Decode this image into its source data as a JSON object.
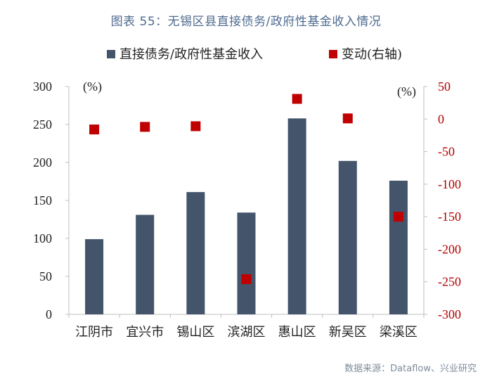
{
  "header": {
    "title": "图表 55：无锡区县直接债务/政府性基金收入情况"
  },
  "footer": {
    "source": "数据来源：Dataflow、兴业研究"
  },
  "colors": {
    "bar": "#44546a",
    "marker": "#c00000",
    "right_axis": "#b30000",
    "title": "#4f6b8f"
  },
  "chart_data": {
    "type": "bar",
    "title": "无锡区县直接债务/政府性基金收入情况",
    "categories": [
      "江阴市",
      "宜兴市",
      "锡山区",
      "滨湖区",
      "惠山区",
      "新吴区",
      "梁溪区"
    ],
    "series": [
      {
        "name": "直接债务/政府性基金收入",
        "kind": "bar",
        "axis": "left",
        "values": [
          99,
          131,
          161,
          134,
          258,
          202,
          176
        ]
      },
      {
        "name": "变动(右轴)",
        "kind": "scatter",
        "axis": "right",
        "values": [
          -16,
          -12,
          -11,
          -246,
          31,
          1,
          -150
        ]
      }
    ],
    "left_axis": {
      "label": "(%)",
      "ylim": [
        0,
        300
      ],
      "ticks": [
        0,
        50,
        100,
        150,
        200,
        250,
        300
      ]
    },
    "right_axis": {
      "label": "(%)",
      "ylim": [
        -300,
        50
      ],
      "ticks": [
        50,
        0,
        -50,
        -100,
        -150,
        -200,
        -250,
        -300
      ]
    },
    "legend_position": "top"
  }
}
